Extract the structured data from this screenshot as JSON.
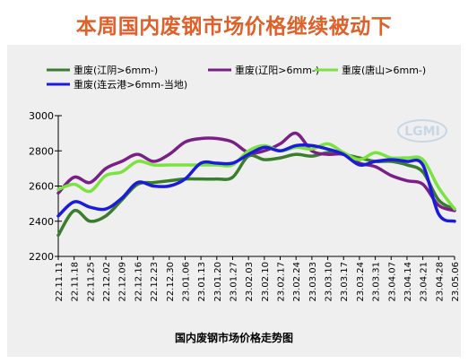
{
  "headline": "本周国内废钢市场价格继续被动下",
  "watermark_text": "LGMI",
  "caption": "国内废钢市场价格走势图",
  "chart_data": {
    "type": "line",
    "title": "本周国内废钢市场价格继续被动下",
    "xlabel": "国内废钢市场价格走势图",
    "ylabel": "",
    "ylim": [
      2200,
      3000
    ],
    "yticks": [
      2200,
      2400,
      2600,
      2800,
      3000
    ],
    "grid": false,
    "legend_position": "top",
    "x": [
      "22.11.11",
      "22.11.18",
      "22.11.25",
      "22.12.02",
      "22.12.09",
      "22.12.16",
      "22.12.23",
      "22.12.30",
      "23.01.06",
      "23.01.13",
      "23.01.20",
      "23.01.27",
      "23.02.03",
      "23.02.10",
      "23.02.17",
      "23.02.24",
      "23.03.03",
      "23.03.10",
      "23.03.17",
      "23.03.24",
      "23.03.31",
      "23.04.07",
      "23.04.14",
      "23.04.21",
      "23.04.28",
      "23.05.06"
    ],
    "series": [
      {
        "name": "重废(江阴>6mm-)",
        "color": "#3a7d2c",
        "values": [
          2320,
          2460,
          2400,
          2430,
          2520,
          2610,
          2620,
          2630,
          2640,
          2640,
          2640,
          2650,
          2770,
          2750,
          2760,
          2780,
          2770,
          2790,
          2780,
          2760,
          2740,
          2740,
          2720,
          2680,
          2520,
          2470
        ]
      },
      {
        "name": "重废(辽阳>6mm-)",
        "color": "#7a1f87",
        "values": [
          2560,
          2650,
          2620,
          2700,
          2740,
          2780,
          2740,
          2780,
          2850,
          2870,
          2870,
          2850,
          2790,
          2800,
          2840,
          2900,
          2800,
          2780,
          2780,
          2730,
          2710,
          2660,
          2630,
          2610,
          2490,
          2460
        ]
      },
      {
        "name": "重废(唐山>6mm-)",
        "color": "#7ae33f",
        "values": [
          2580,
          2610,
          2570,
          2660,
          2680,
          2740,
          2720,
          2720,
          2720,
          2720,
          2720,
          2720,
          2800,
          2830,
          2800,
          2820,
          2810,
          2840,
          2790,
          2750,
          2790,
          2760,
          2760,
          2750,
          2590,
          2470
        ]
      },
      {
        "name": "重废(连云港>6mm-当地)",
        "color": "#1b1bdc",
        "values": [
          2430,
          2510,
          2480,
          2470,
          2530,
          2620,
          2600,
          2600,
          2640,
          2730,
          2730,
          2730,
          2780,
          2820,
          2800,
          2830,
          2830,
          2810,
          2780,
          2720,
          2740,
          2750,
          2740,
          2720,
          2440,
          2400
        ]
      }
    ]
  }
}
